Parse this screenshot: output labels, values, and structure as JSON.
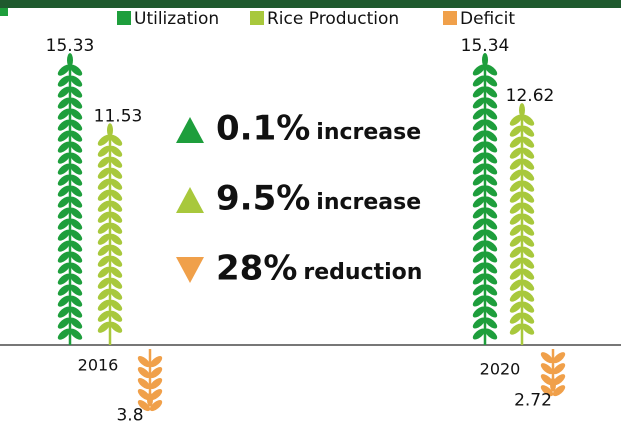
{
  "chart_data": {
    "type": "wheat",
    "categories": [
      "2016",
      "2020"
    ],
    "series": [
      {
        "name": "Utilization",
        "color": "#1e9e3c",
        "values": [
          15.33,
          15.34
        ]
      },
      {
        "name": "Rice Production",
        "color": "#a8c83c",
        "values": [
          11.53,
          12.62
        ]
      },
      {
        "name": "Deficit",
        "color": "#f0a04a",
        "values": [
          3.8,
          2.72
        ]
      }
    ],
    "annotations": [
      {
        "value": "0.1%",
        "text": "increase",
        "direction": "up"
      },
      {
        "value": "9.5%",
        "text": "increase",
        "direction": "up"
      },
      {
        "value": "28%",
        "text": "reduction",
        "direction": "down"
      }
    ]
  }
}
